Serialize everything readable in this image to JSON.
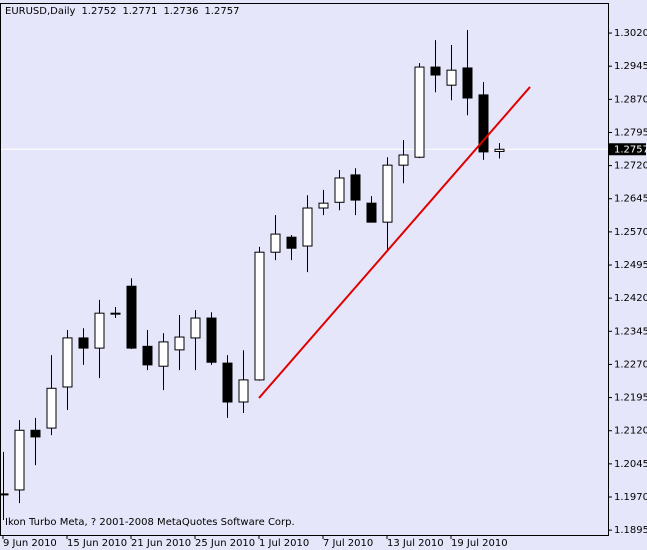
{
  "chart_data": {
    "type": "candlestick",
    "title": "EURUSD,Daily",
    "footer": "Ikon Turbo Meta, ? 2001-2008 MetaQuotes Software Corp.",
    "categories": [
      "9 Jun 2010",
      null,
      null,
      null,
      "15 Jun 2010",
      null,
      null,
      null,
      "21 Jun 2010",
      null,
      null,
      null,
      "25 Jun 2010",
      null,
      null,
      null,
      "1 Jul 2010",
      null,
      null,
      null,
      "7 Jul 2010",
      null,
      null,
      null,
      "13 Jul 2010",
      null,
      null,
      null,
      "19 Jul 2010",
      null,
      null,
      null
    ],
    "open": [
      1.1975,
      1.1986,
      1.2121,
      1.2126,
      1.2219,
      1.233,
      1.2307,
      1.2386,
      1.2447,
      1.2311,
      1.2266,
      1.2303,
      1.233,
      1.2375,
      1.2273,
      1.2185,
      1.2235,
      1.2524,
      1.2558,
      1.2538,
      1.2624,
      1.2637,
      1.2699,
      1.2635,
      1.2592,
      1.2721,
      1.2739,
      1.2943,
      1.2902,
      1.2941,
      1.288,
      1.2752
    ],
    "high": [
      1.2072,
      1.2144,
      1.2149,
      1.2291,
      1.2348,
      1.2352,
      1.2416,
      1.24,
      1.2465,
      1.2348,
      1.2341,
      1.2382,
      1.2393,
      1.2388,
      1.2291,
      1.2302,
      1.2536,
      1.2608,
      1.2563,
      1.2653,
      1.2665,
      1.271,
      1.2714,
      1.2651,
      1.2739,
      1.2778,
      1.2952,
      1.3004,
      1.2993,
      1.3027,
      1.2909,
      1.2771
    ],
    "low": [
      1.1918,
      1.1956,
      1.2042,
      1.211,
      1.2167,
      1.2269,
      1.2239,
      1.2375,
      1.2305,
      1.2257,
      1.2212,
      1.2257,
      1.2257,
      1.2269,
      1.2149,
      1.216,
      1.2233,
      1.2506,
      1.2506,
      1.2479,
      1.2608,
      1.2619,
      1.2608,
      1.2592,
      1.2529,
      1.268,
      1.2737,
      1.2886,
      1.2868,
      1.2834,
      1.2733,
      1.2736
    ],
    "close": [
      1.1977,
      1.2121,
      1.2106,
      1.2216,
      1.233,
      1.2307,
      1.2386,
      1.2384,
      1.2307,
      1.2269,
      1.2321,
      1.2332,
      1.2375,
      1.2275,
      1.2185,
      1.2235,
      1.2524,
      1.2565,
      1.2533,
      1.2624,
      1.2635,
      1.2692,
      1.2642,
      1.2592,
      1.2721,
      1.2744,
      1.2943,
      1.2925,
      1.2936,
      1.2873,
      1.2751,
      1.2757
    ],
    "ylim": [
      1.1884,
      1.3088
    ],
    "yticks": [
      1.1895,
      {
        "value": 1.197,
        "label": "1.1970"
      },
      1.2045,
      {
        "value": 1.212,
        "label": "1.2120"
      },
      1.2195,
      {
        "value": 1.227,
        "label": "1.2270"
      },
      1.2345,
      {
        "value": 1.242,
        "label": "1.2420"
      },
      1.2495,
      {
        "value": 1.257,
        "label": "1.2570"
      },
      1.2645,
      {
        "value": 1.272,
        "label": "1.2720"
      },
      1.2795,
      {
        "value": 1.287,
        "label": "1.2870"
      },
      1.2945,
      {
        "value": 1.302,
        "label": "1.3020"
      }
    ],
    "up_color": "#ffffff",
    "down_color": "#000000",
    "background": "#e6e6fa",
    "trendline": {
      "x": [
        16,
        32.94
      ],
      "y": [
        1.2194,
        1.2898
      ],
      "color": "#e00000"
    }
  }
}
